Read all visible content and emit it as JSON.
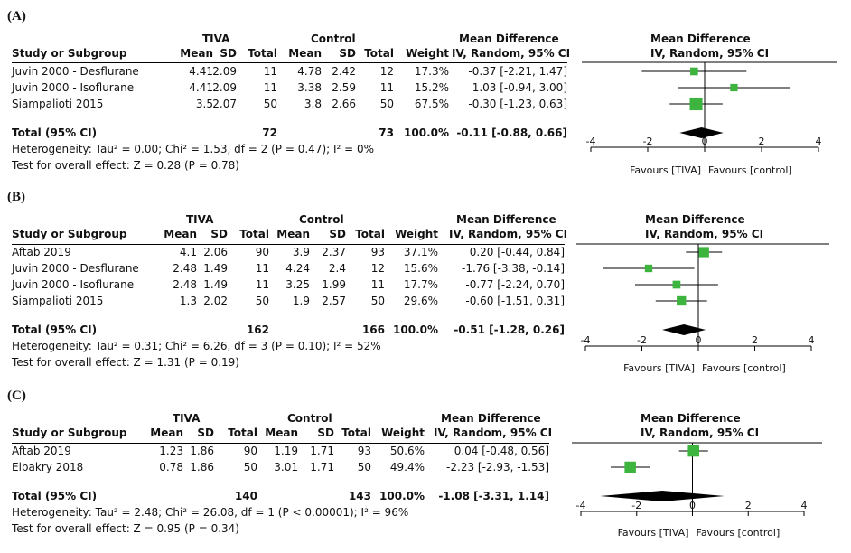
{
  "chart_data": [
    {
      "type": "forest",
      "panel_label": "(A)",
      "group1": "TIVA",
      "group2": "Control",
      "columns": [
        "Study or Subgroup",
        "Mean",
        "SD",
        "Total",
        "Mean",
        "SD",
        "Total",
        "Weight",
        "IV, Random, 95% CI"
      ],
      "effect_header": "Mean Difference",
      "plot_header1": "Mean Difference",
      "plot_header2": "IV, Random, 95% CI",
      "studies": [
        {
          "name": "Juvin 2000 - Desflurane",
          "m1": "4.41",
          "sd1": "2.09",
          "n1": "11",
          "m2": "4.78",
          "sd2": "2.42",
          "n2": "12",
          "weight": "17.3%",
          "ci_text": "-0.37 [-2.21, 1.47]",
          "md": -0.37,
          "lo": -2.21,
          "hi": 1.47,
          "w": 17.3
        },
        {
          "name": "Juvin 2000 - Isoflurane",
          "m1": "4.41",
          "sd1": "2.09",
          "n1": "11",
          "m2": "3.38",
          "sd2": "2.59",
          "n2": "11",
          "weight": "15.2%",
          "ci_text": "1.03 [-0.94, 3.00]",
          "md": 1.03,
          "lo": -0.94,
          "hi": 3.0,
          "w": 15.2
        },
        {
          "name": "Siampalioti 2015",
          "m1": "3.5",
          "sd1": "2.07",
          "n1": "50",
          "m2": "3.8",
          "sd2": "2.66",
          "n2": "50",
          "weight": "67.5%",
          "ci_text": "-0.30 [-1.23, 0.63]",
          "md": -0.3,
          "lo": -1.23,
          "hi": 0.63,
          "w": 67.5
        }
      ],
      "total": {
        "label": "Total (95% CI)",
        "n1": "72",
        "n2": "73",
        "weight": "100.0%",
        "ci_text": "-0.11 [-0.88, 0.66]",
        "md": -0.11,
        "lo": -0.88,
        "hi": 0.66
      },
      "heterogeneity": "Heterogeneity: Tau² = 0.00; Chi² = 1.53, df = 2 (P = 0.47); I² = 0%",
      "overall": "Test for overall effect: Z = 0.28 (P = 0.78)",
      "axis": {
        "min": -4,
        "max": 4,
        "ticks": [
          -4,
          -2,
          0,
          2,
          4
        ]
      },
      "favours_left": "Favours [TIVA]",
      "favours_right": "Favours [control]"
    },
    {
      "type": "forest",
      "panel_label": "(B)",
      "group1": "TIVA",
      "group2": "Control",
      "columns": [
        "Study or Subgroup",
        "Mean",
        "SD",
        "Total",
        "Mean",
        "SD",
        "Total",
        "Weight",
        "IV, Random, 95% CI"
      ],
      "effect_header": "Mean Difference",
      "plot_header1": "Mean Difference",
      "plot_header2": "IV, Random, 95% CI",
      "studies": [
        {
          "name": "Aftab 2019",
          "m1": "4.1",
          "sd1": "2.06",
          "n1": "90",
          "m2": "3.9",
          "sd2": "2.37",
          "n2": "93",
          "weight": "37.1%",
          "ci_text": "0.20 [-0.44, 0.84]",
          "md": 0.2,
          "lo": -0.44,
          "hi": 0.84,
          "w": 37.1
        },
        {
          "name": "Juvin 2000 - Desflurane",
          "m1": "2.48",
          "sd1": "1.49",
          "n1": "11",
          "m2": "4.24",
          "sd2": "2.4",
          "n2": "12",
          "weight": "15.6%",
          "ci_text": "-1.76 [-3.38, -0.14]",
          "md": -1.76,
          "lo": -3.38,
          "hi": -0.14,
          "w": 15.6
        },
        {
          "name": "Juvin 2000 - Isoflurane",
          "m1": "2.48",
          "sd1": "1.49",
          "n1": "11",
          "m2": "3.25",
          "sd2": "1.99",
          "n2": "11",
          "weight": "17.7%",
          "ci_text": "-0.77 [-2.24, 0.70]",
          "md": -0.77,
          "lo": -2.24,
          "hi": 0.7,
          "w": 17.7
        },
        {
          "name": "Siampalioti 2015",
          "m1": "1.3",
          "sd1": "2.02",
          "n1": "50",
          "m2": "1.9",
          "sd2": "2.57",
          "n2": "50",
          "weight": "29.6%",
          "ci_text": "-0.60 [-1.51, 0.31]",
          "md": -0.6,
          "lo": -1.51,
          "hi": 0.31,
          "w": 29.6
        }
      ],
      "total": {
        "label": "Total (95% CI)",
        "n1": "162",
        "n2": "166",
        "weight": "100.0%",
        "ci_text": "-0.51 [-1.28, 0.26]",
        "md": -0.51,
        "lo": -1.28,
        "hi": 0.26
      },
      "heterogeneity": "Heterogeneity: Tau² = 0.31; Chi² = 6.26, df = 3 (P = 0.10); I² = 52%",
      "overall": "Test for overall effect: Z = 1.31 (P = 0.19)",
      "axis": {
        "min": -4,
        "max": 4,
        "ticks": [
          -4,
          -2,
          0,
          2,
          4
        ]
      },
      "favours_left": "Favours [TIVA]",
      "favours_right": "Favours [control]"
    },
    {
      "type": "forest",
      "panel_label": "(C)",
      "group1": "TIVA",
      "group2": "Control",
      "columns": [
        "Study or Subgroup",
        "Mean",
        "SD",
        "Total",
        "Mean",
        "SD",
        "Total",
        "Weight",
        "IV, Random, 95% CI"
      ],
      "effect_header": "Mean Difference",
      "plot_header1": "Mean Difference",
      "plot_header2": "IV, Random, 95% CI",
      "studies": [
        {
          "name": "Aftab 2019",
          "m1": "1.23",
          "sd1": "1.86",
          "n1": "90",
          "m2": "1.19",
          "sd2": "1.71",
          "n2": "93",
          "weight": "50.6%",
          "ci_text": "0.04 [-0.48, 0.56]",
          "md": 0.04,
          "lo": -0.48,
          "hi": 0.56,
          "w": 50.6
        },
        {
          "name": "Elbakry 2018",
          "m1": "0.78",
          "sd1": "1.86",
          "n1": "50",
          "m2": "3.01",
          "sd2": "1.71",
          "n2": "50",
          "weight": "49.4%",
          "ci_text": "-2.23 [-2.93, -1.53]",
          "md": -2.23,
          "lo": -2.93,
          "hi": -1.53,
          "w": 49.4
        }
      ],
      "total": {
        "label": "Total (95% CI)",
        "n1": "140",
        "n2": "143",
        "weight": "100.0%",
        "ci_text": "-1.08 [-3.31, 1.14]",
        "md": -1.08,
        "lo": -3.31,
        "hi": 1.14
      },
      "heterogeneity": "Heterogeneity: Tau² = 2.48; Chi² = 26.08, df = 1 (P < 0.00001); I² = 96%",
      "overall": "Test for overall effect: Z = 0.95 (P = 0.34)",
      "axis": {
        "min": -4,
        "max": 4,
        "ticks": [
          -4,
          -2,
          0,
          2,
          4
        ]
      },
      "favours_left": "Favours [TIVA]",
      "favours_right": "Favours [control]"
    }
  ],
  "colors": {
    "marker": "#3db43d",
    "diamond": "#000000"
  }
}
